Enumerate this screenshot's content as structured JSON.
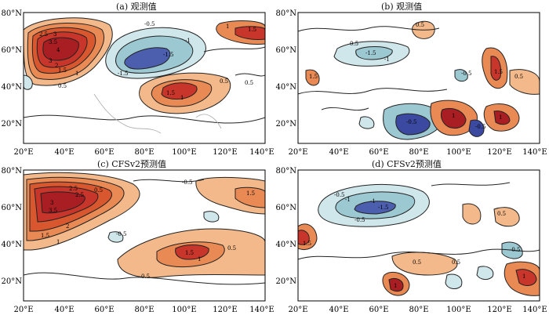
{
  "panels": [
    {
      "id": "a",
      "title": "(a) 观测值",
      "x_ticks": [
        "20°E",
        "40°E",
        "60°E",
        "80°E",
        "100°E",
        "120°E",
        "140°E"
      ],
      "y_ticks": [
        "80°N",
        "60°N",
        "40°N",
        "20°N"
      ],
      "contour_labels": [
        "2.5",
        "3",
        "3.5",
        "4",
        "3",
        "2",
        "1.5",
        "1",
        "0.5",
        "-0.5",
        "-1",
        "-1.5",
        "-1.5",
        "1.5",
        "1",
        "0.5",
        "1.5",
        "1",
        "0.5"
      ],
      "colors": {
        "positive": "#b8391e",
        "negative": "#3b4aa0"
      }
    },
    {
      "id": "b",
      "title": "(b) 观测值",
      "x_ticks": [
        "20°E",
        "40°E",
        "60°E",
        "80°E",
        "100°E",
        "120°E",
        "140°E"
      ],
      "y_ticks": [
        "80°N",
        "60°N",
        "40°N",
        "20°N"
      ],
      "contour_labels": [
        "0.5",
        "-1.5",
        "-1",
        "0.5",
        "1.5",
        "0.5",
        "-0.5",
        "1",
        "-0.5",
        "-0.5",
        "1",
        "1.5"
      ],
      "colors": {
        "positive": "#b8391e",
        "negative": "#3b4aa0"
      }
    },
    {
      "id": "c",
      "title": "(c) CFSv2预测值",
      "x_ticks": [
        "20°E",
        "40°E",
        "60°E",
        "80°E",
        "100°E",
        "120°E",
        "140°E"
      ],
      "y_ticks": [
        "80°N",
        "60°N",
        "40°N",
        "20°N"
      ],
      "contour_labels": [
        "2.5",
        "3",
        "3.5",
        "2.5",
        "2",
        "1.5",
        "1",
        "0.5",
        "-0.5",
        "-0.5",
        "1.5",
        "1",
        "0.5",
        "1.5",
        "0.5"
      ],
      "colors": {
        "positive": "#b8391e",
        "negative": "#3b4aa0"
      }
    },
    {
      "id": "d",
      "title": "(d) CFSv2预测值",
      "x_ticks": [
        "20°E",
        "40°E",
        "60°E",
        "80°E",
        "100°E",
        "120°E",
        "140°E"
      ],
      "y_ticks": [
        "80°N",
        "60°N",
        "40°N",
        "20°N"
      ],
      "contour_labels": [
        "-0.5",
        "-1",
        "-1.5",
        "-0.5",
        "-1",
        "0.5",
        "1.5",
        "1",
        "0.5",
        "0.5",
        "-0.5",
        "1"
      ],
      "colors": {
        "positive": "#b8391e",
        "negative": "#3b4aa0"
      }
    }
  ]
}
